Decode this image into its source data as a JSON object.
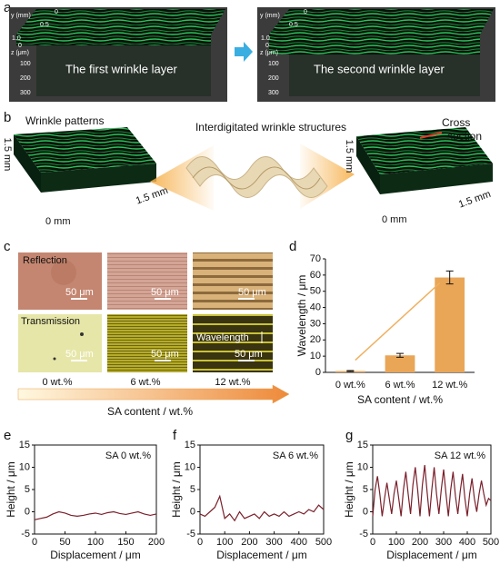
{
  "panel_a": {
    "label": "a",
    "left": {
      "y_axis": "y (mm)",
      "y_ticks": [
        "0",
        "0.5",
        "1.0"
      ],
      "z_zero": "0",
      "z_axis": "z (μm)",
      "z_ticks": [
        "100",
        "200",
        "300"
      ],
      "caption": "The first wrinkle layer"
    },
    "right": {
      "y_axis": "y (mm)",
      "y_ticks": [
        "0",
        "0.5",
        "1.0"
      ],
      "z_zero": "0",
      "z_axis": "z (μm)",
      "z_ticks": [
        "100",
        "200",
        "300"
      ],
      "caption": "The second wrinkle layer"
    }
  },
  "panel_b": {
    "label": "b",
    "left_title": "Wrinkle patterns",
    "center_title": "Interdigitated wrinkle structures",
    "right_title": [
      "Cross",
      "section"
    ],
    "left_dims": [
      "1.5 mm",
      "1.5 mm",
      "0 mm"
    ],
    "right_dims": [
      "1.5 mm",
      "1.5 mm",
      "0 mm"
    ]
  },
  "panel_c": {
    "label": "c",
    "row_labels": [
      "Reflection",
      "Transmission"
    ],
    "scale_bars": [
      "50 μm",
      "50 μm",
      "50 μm",
      "50 μm",
      "50 μm",
      "50 μm"
    ],
    "wavelength": "Wavelength",
    "columns": [
      "0 wt.%",
      "6 wt.%",
      "12 wt.%"
    ],
    "axis_label": "SA content / wt.%"
  },
  "chart_data": [
    {
      "label": "d",
      "type": "bar",
      "categories": [
        "0 wt.%",
        "6 wt.%",
        "12 wt.%"
      ],
      "values": [
        0.8,
        10.5,
        58.5
      ],
      "errors": [
        0.3,
        1.2,
        4.0
      ],
      "color": "#e9a657",
      "ylim": [
        0,
        70
      ],
      "yticks": [
        0,
        10,
        20,
        30,
        40,
        50,
        60,
        70
      ],
      "ylabel": "Wavelength / μm",
      "xlabel": "SA content / wt.%"
    },
    {
      "label": "e",
      "type": "line",
      "annotation": "SA 0 wt.%",
      "color": "#7a1f2b",
      "x": [
        0,
        10,
        20,
        30,
        40,
        50,
        60,
        70,
        80,
        90,
        100,
        110,
        120,
        130,
        140,
        150,
        160,
        170,
        180,
        190,
        200
      ],
      "values": [
        -1.8,
        -1.5,
        -1.2,
        -0.5,
        0,
        -0.3,
        -0.8,
        -1,
        -0.8,
        -0.5,
        -0.3,
        -0.6,
        -0.2,
        0,
        -0.4,
        -0.6,
        -0.3,
        0,
        -0.5,
        -0.8,
        -0.5
      ],
      "xlim": [
        0,
        200
      ],
      "xticks": [
        0,
        50,
        100,
        150,
        200
      ],
      "ylim": [
        -5,
        15
      ],
      "yticks": [
        -5,
        0,
        5,
        10,
        15
      ],
      "ylabel": "Height / μm",
      "xlabel": "Displacement / μm"
    },
    {
      "label": "f",
      "type": "line",
      "annotation": "SA 6 wt.%",
      "color": "#7a1f2b",
      "x": [
        0,
        20,
        40,
        60,
        80,
        100,
        120,
        140,
        160,
        180,
        200,
        220,
        240,
        260,
        280,
        300,
        320,
        340,
        360,
        380,
        400,
        420,
        440,
        460,
        480,
        500
      ],
      "values": [
        -0.5,
        -1,
        0,
        1,
        3.5,
        -1.5,
        -0.5,
        -2,
        0,
        -1.5,
        -1,
        -0.5,
        -1.5,
        0,
        -1,
        -0.5,
        -1,
        0,
        -1,
        -0.5,
        0,
        -0.5,
        0.5,
        0,
        1.5,
        0.5
      ],
      "xlim": [
        0,
        500
      ],
      "xticks": [
        0,
        100,
        200,
        300,
        400,
        500
      ],
      "ylim": [
        -5,
        15
      ],
      "yticks": [
        -5,
        0,
        5,
        10,
        15
      ],
      "ylabel": "Height / μm",
      "xlabel": "Displacement / μm"
    },
    {
      "label": "g",
      "type": "line",
      "annotation": "SA 12 wt.%",
      "color": "#7a1f2b",
      "x": [
        0,
        10,
        20,
        30,
        40,
        50,
        60,
        70,
        80,
        90,
        100,
        110,
        120,
        130,
        140,
        150,
        160,
        170,
        180,
        190,
        200,
        210,
        220,
        230,
        240,
        250,
        260,
        270,
        280,
        290,
        300,
        310,
        320,
        330,
        340,
        350,
        360,
        370,
        380,
        390,
        400,
        410,
        420,
        430,
        440,
        450,
        460,
        470,
        480,
        490,
        500
      ],
      "values": [
        -1,
        5,
        8,
        4,
        -1,
        3,
        6.5,
        3,
        -0.5,
        4,
        7,
        3,
        -1,
        5,
        9,
        4,
        -0.5,
        6,
        10,
        5,
        -1,
        6,
        10.5,
        4.5,
        -1,
        5,
        10,
        4,
        -0.5,
        5,
        9.5,
        4,
        -1,
        5,
        9,
        3.5,
        -0.5,
        4.5,
        8.5,
        3,
        -1,
        4,
        7.5,
        3,
        0,
        4,
        7,
        4,
        1.5,
        3,
        2.5
      ],
      "xlim": [
        0,
        500
      ],
      "xticks": [
        0,
        100,
        200,
        300,
        400,
        500
      ],
      "ylim": [
        -5,
        15
      ],
      "yticks": [
        -5,
        0,
        5,
        10,
        15
      ],
      "ylabel": "Height / μm",
      "xlabel": "Displacement / μm"
    }
  ]
}
